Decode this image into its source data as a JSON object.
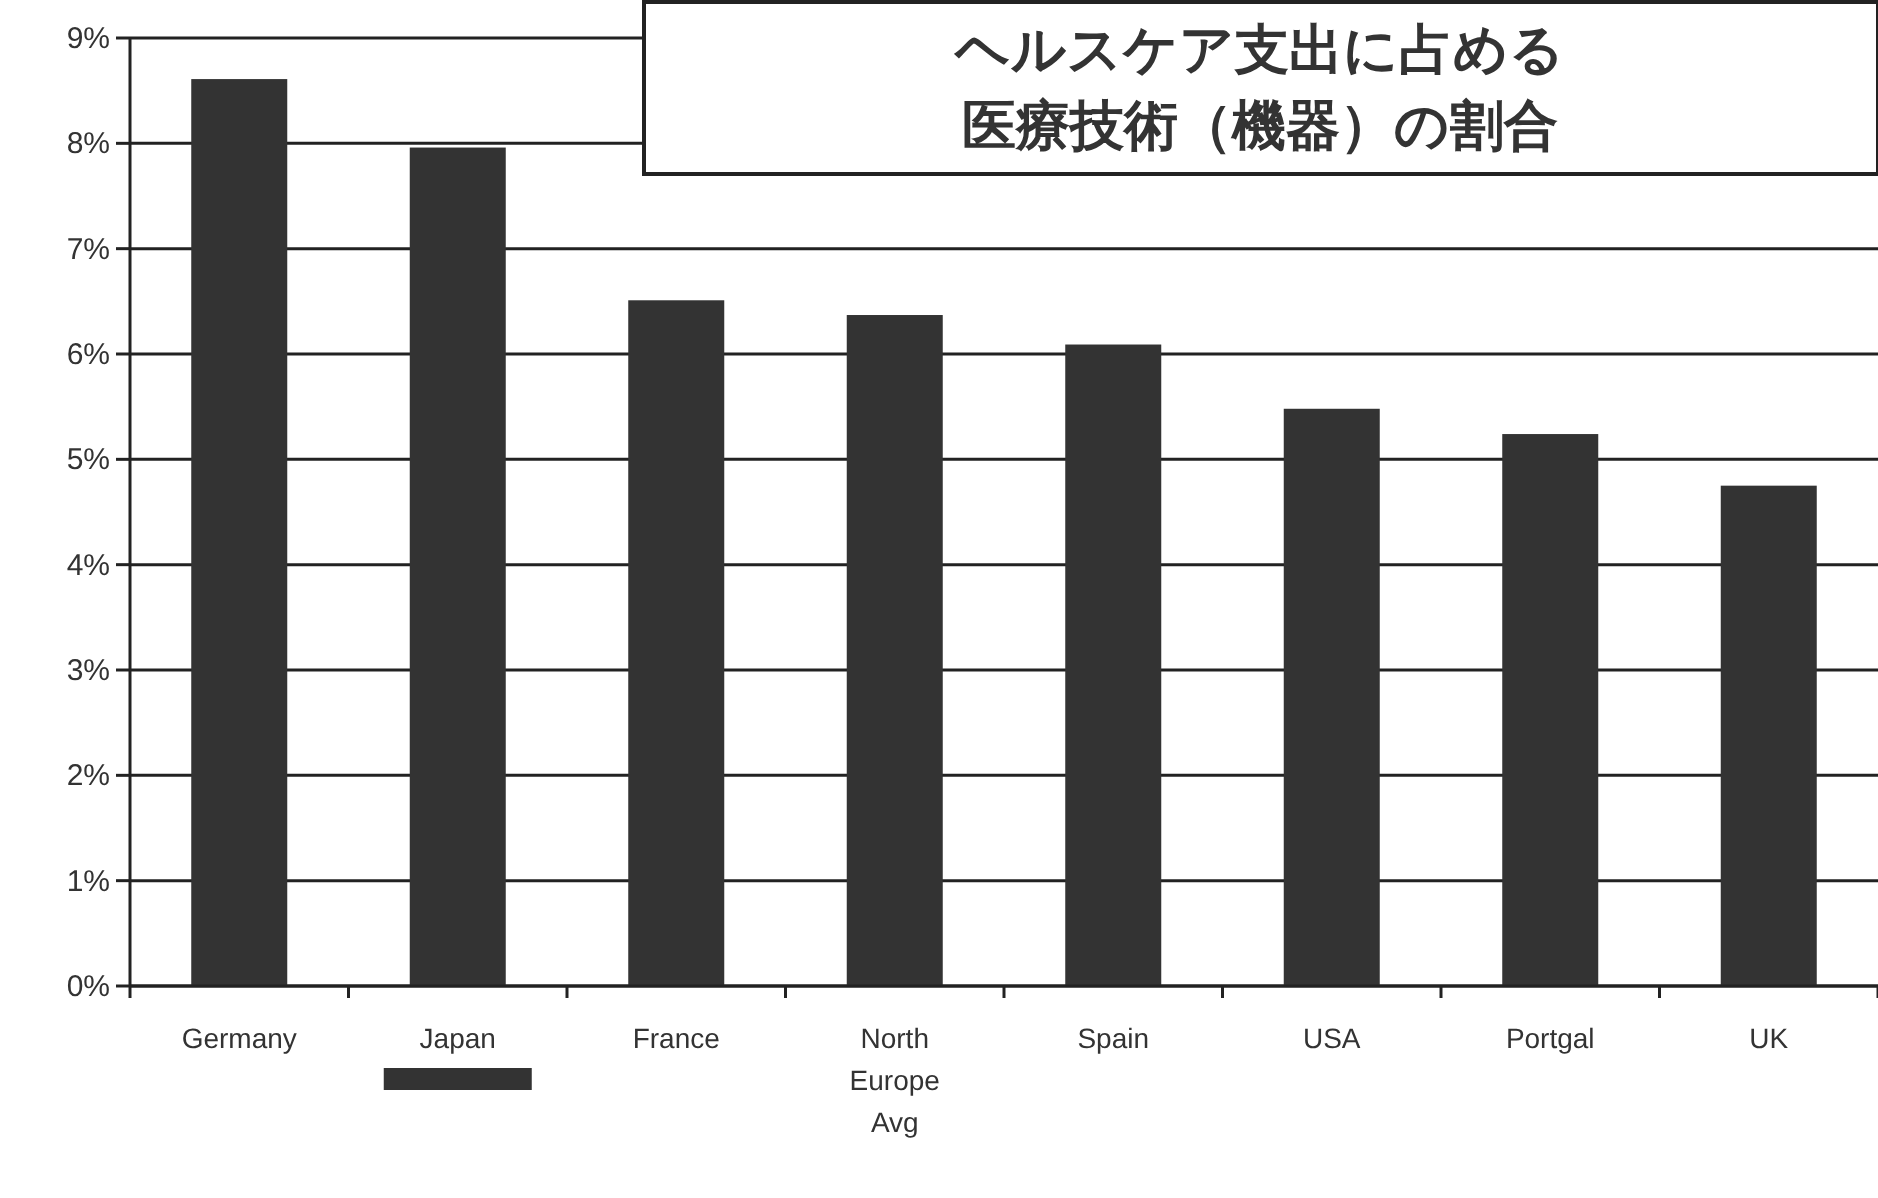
{
  "chart_data": {
    "type": "bar",
    "title": "ヘルスケア支出に占める医療技術（機器）の割合",
    "categories": [
      "Germany",
      "Japan",
      "France",
      "North Europe Avg",
      "Spain",
      "USA",
      "Portgal",
      "UK"
    ],
    "values": [
      8.61,
      7.96,
      6.51,
      6.37,
      6.09,
      5.48,
      5.24,
      4.75
    ],
    "color": "#333333",
    "ylim": [
      0,
      9
    ],
    "yticks": [
      {
        "value": 0,
        "label": "0%"
      },
      {
        "value": 1,
        "label": "1%"
      },
      {
        "value": 2,
        "label": "2%"
      },
      {
        "value": 3,
        "label": "3%"
      },
      {
        "value": 4,
        "label": "4%"
      },
      {
        "value": 5,
        "label": "5%"
      },
      {
        "value": 6,
        "label": "6%"
      },
      {
        "value": 7,
        "label": "7%"
      },
      {
        "value": 8,
        "label": "8%"
      },
      {
        "value": 9,
        "label": "9%"
      }
    ],
    "grid": "y"
  }
}
